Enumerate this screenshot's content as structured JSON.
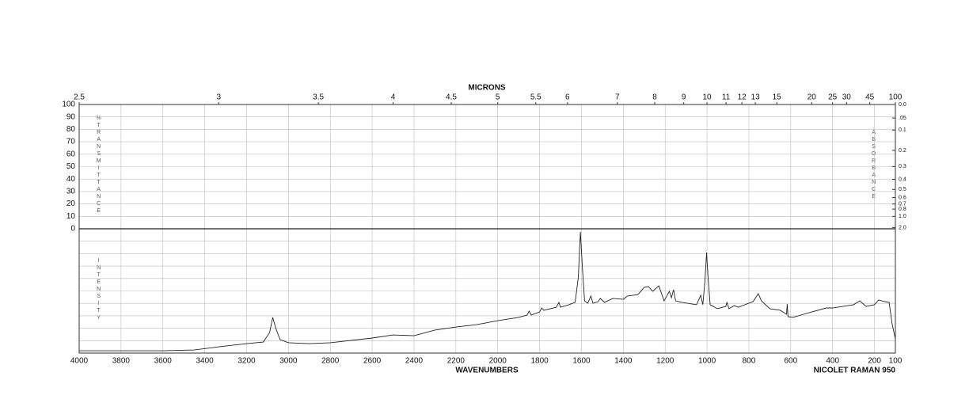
{
  "chart_data": {
    "type": "line",
    "x_label": "WAVENUMBERS",
    "x2_label": "MICRONS",
    "y_label": "%TRANSMITTANCE",
    "y2_label": "ABSORBANCE",
    "intensity_label": "INTENSITY",
    "instrument": "NICOLET RAMAN 950",
    "color": "#222222",
    "grid": true,
    "xlim": [
      4000,
      100
    ],
    "xticks": [
      4000,
      3800,
      3600,
      3400,
      3200,
      3000,
      2800,
      2600,
      2400,
      2200,
      2000,
      1800,
      1600,
      1400,
      1200,
      1000,
      800,
      600,
      400,
      200,
      100
    ],
    "x2ticks": [
      2.5,
      3,
      3.5,
      4,
      4.5,
      5,
      5.5,
      6,
      7,
      8,
      9,
      10,
      11,
      12,
      13,
      15,
      20,
      25,
      30,
      45,
      100
    ],
    "ylim": [
      0,
      100
    ],
    "yticks": [
      0,
      10,
      20,
      30,
      40,
      50,
      60,
      70,
      80,
      90,
      100
    ],
    "y2ticks": [
      {
        "value": 0,
        "label": "0.0"
      },
      {
        "value": 0.05,
        "label": ".05"
      },
      0.1,
      0.2,
      0.3,
      0.4,
      0.5,
      0.6,
      0.7,
      0.8,
      {
        "value": 1,
        "label": "1.0"
      },
      {
        "value": 2,
        "label": "2.0"
      }
    ],
    "intensity_ylim": [
      0,
      100
    ],
    "x": [
      4000,
      3600,
      3450,
      3300,
      3200,
      3120,
      3090,
      3075,
      3060,
      3040,
      3000,
      2900,
      2800,
      2600,
      2500,
      2400,
      2300,
      2200,
      2100,
      2000,
      1900,
      1860,
      1850,
      1840,
      1800,
      1790,
      1780,
      1720,
      1708,
      1700,
      1660,
      1630,
      1615,
      1605,
      1595,
      1585,
      1570,
      1555,
      1545,
      1520,
      1510,
      1490,
      1450,
      1400,
      1380,
      1330,
      1300,
      1280,
      1260,
      1230,
      1205,
      1180,
      1170,
      1160,
      1150,
      1120,
      1050,
      1030,
      1020,
      1010,
      1002,
      995,
      985,
      950,
      910,
      905,
      895,
      870,
      850,
      780,
      755,
      740,
      700,
      650,
      620,
      617,
      613,
      590,
      500,
      430,
      400,
      300,
      270,
      240,
      200,
      180,
      150,
      130,
      115,
      100
    ],
    "values": [
      1.9,
      1.9,
      2.5,
      5.7,
      7.6,
      8.9,
      16.6,
      28.7,
      19.7,
      10.8,
      8.3,
      7.6,
      8.3,
      12.1,
      14.6,
      14,
      18.5,
      21,
      22.9,
      26.1,
      28.7,
      30.6,
      33.8,
      30.6,
      33.1,
      36.3,
      34.4,
      36.9,
      40.8,
      36.9,
      38.9,
      40.8,
      61,
      97.5,
      67.5,
      42,
      40.1,
      45.9,
      40.1,
      41.4,
      44,
      40.8,
      44,
      43.3,
      45.9,
      47.1,
      52.9,
      53.5,
      49.7,
      54.1,
      42,
      49.7,
      44.6,
      51,
      42,
      40.8,
      38.9,
      46.5,
      38.9,
      58,
      80.9,
      61,
      38.9,
      35.7,
      37.6,
      40.8,
      35.7,
      38.2,
      36.9,
      41.4,
      47.8,
      42,
      35.7,
      34.4,
      31.2,
      39.5,
      29.3,
      28.7,
      33.1,
      36.3,
      36.3,
      38.9,
      42,
      37.6,
      38.9,
      42.7,
      41.4,
      40.8,
      22.9,
      11.5
    ]
  }
}
